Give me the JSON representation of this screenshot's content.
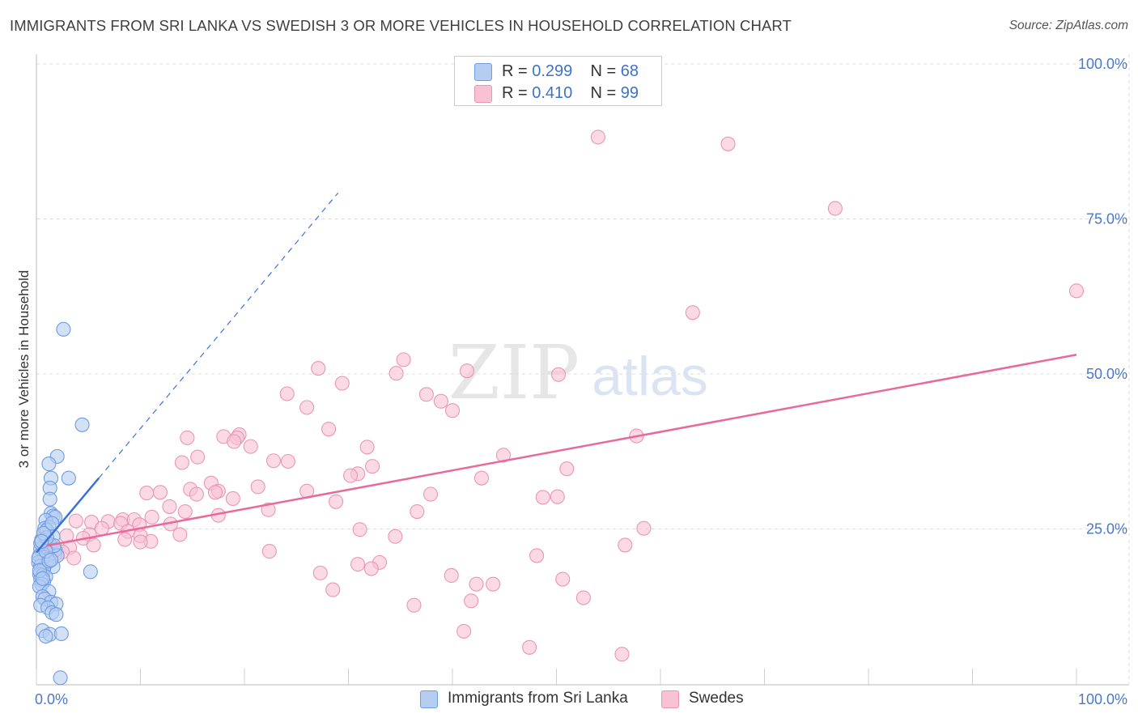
{
  "header": {
    "title": "IMMIGRANTS FROM SRI LANKA VS SWEDISH 3 OR MORE VEHICLES IN HOUSEHOLD CORRELATION CHART",
    "source": "Source: ZipAtlas.com"
  },
  "watermark": {
    "zip": "ZIP",
    "atlas": "atlas"
  },
  "legend": {
    "series1": {
      "r_label": "R =",
      "r_value": "0.299",
      "n_label": "N =",
      "n_value": "68"
    },
    "series2": {
      "r_label": "R =",
      "r_value": "0.410",
      "n_label": "N =",
      "n_value": "99"
    }
  },
  "colors": {
    "blue": "#3a72d8",
    "blue_fill": "#b6cdf2",
    "blue_stroke": "#6f9be0",
    "pink": "#e8699a",
    "pink_fill": "#f8c1d4",
    "pink_stroke": "#e996b6",
    "grid": "#dddddd",
    "axis_text": "#4a78c8"
  },
  "chart_data": {
    "type": "scatter",
    "title": "IMMIGRANTS FROM SRI LANKA VS SWEDISH 3 OR MORE VEHICLES IN HOUSEHOLD CORRELATION CHART",
    "xlabel": "",
    "ylabel": "3 or more Vehicles in Household",
    "xlim": [
      0,
      100
    ],
    "ylim": [
      0,
      100
    ],
    "x_tick_labels": [
      "0.0%",
      "100.0%"
    ],
    "y_ticks": [
      25,
      50,
      75,
      100
    ],
    "y_tick_labels": [
      "25.0%",
      "50.0%",
      "75.0%",
      "100.0%"
    ],
    "grid": true,
    "legend_position": "top-center",
    "series": [
      {
        "name": "Immigrants from Sri Lanka",
        "color": "#3a72d8",
        "r": 0.299,
        "n": 68,
        "trend": {
          "slope": 2.0,
          "intercept": 21.2,
          "solid_x": [
            0,
            6.0
          ],
          "dashed_x": [
            6.0,
            29.0
          ]
        },
        "points": [
          [
            2.6,
            57.2
          ],
          [
            4.4,
            41.8
          ],
          [
            2.0,
            36.7
          ],
          [
            1.2,
            35.5
          ],
          [
            3.1,
            33.2
          ],
          [
            1.4,
            33.2
          ],
          [
            1.3,
            31.6
          ],
          [
            1.3,
            29.8
          ],
          [
            1.4,
            27.5
          ],
          [
            1.6,
            27.1
          ],
          [
            1.8,
            26.9
          ],
          [
            0.9,
            26.4
          ],
          [
            1.2,
            25.3
          ],
          [
            0.8,
            25.1
          ],
          [
            1.0,
            24.8
          ],
          [
            1.6,
            23.8
          ],
          [
            0.5,
            23.3
          ],
          [
            0.9,
            22.9
          ],
          [
            1.3,
            22.5
          ],
          [
            0.7,
            22.1
          ],
          [
            0.4,
            21.8
          ],
          [
            1.8,
            21.6
          ],
          [
            1.1,
            21.3
          ],
          [
            0.6,
            21.0
          ],
          [
            0.3,
            20.7
          ],
          [
            2.0,
            20.7
          ],
          [
            0.8,
            20.4
          ],
          [
            1.1,
            20.1
          ],
          [
            0.5,
            19.9
          ],
          [
            0.2,
            19.6
          ],
          [
            0.9,
            19.3
          ],
          [
            0.4,
            19.0
          ],
          [
            1.6,
            18.9
          ],
          [
            0.7,
            18.6
          ],
          [
            5.2,
            18.1
          ],
          [
            0.3,
            17.7
          ],
          [
            0.6,
            17.5
          ],
          [
            0.9,
            17.3
          ],
          [
            0.4,
            16.9
          ],
          [
            0.7,
            16.5
          ],
          [
            0.5,
            16.1
          ],
          [
            0.3,
            15.7
          ],
          [
            1.2,
            14.9
          ],
          [
            0.6,
            14.1
          ],
          [
            0.8,
            13.7
          ],
          [
            1.4,
            13.2
          ],
          [
            1.9,
            12.9
          ],
          [
            0.4,
            12.7
          ],
          [
            1.1,
            12.3
          ],
          [
            1.5,
            11.5
          ],
          [
            1.9,
            11.2
          ],
          [
            0.6,
            8.6
          ],
          [
            1.3,
            8.0
          ],
          [
            2.4,
            8.1
          ],
          [
            0.9,
            7.7
          ],
          [
            2.3,
            1.0
          ],
          [
            0.2,
            20.3
          ],
          [
            1.7,
            22.3
          ],
          [
            0.4,
            22.7
          ],
          [
            1.0,
            23.6
          ],
          [
            0.7,
            24.3
          ],
          [
            1.5,
            25.9
          ],
          [
            0.3,
            18.3
          ],
          [
            1.2,
            19.8
          ],
          [
            0.9,
            21.4
          ],
          [
            0.5,
            23.0
          ],
          [
            1.4,
            20.0
          ],
          [
            0.6,
            17.0
          ]
        ]
      },
      {
        "name": "Swedes",
        "color": "#e8699a",
        "r": 0.41,
        "n": 99,
        "trend": {
          "slope": 0.311,
          "intercept": 22.0,
          "solid_x": [
            1.0,
            100.0
          ]
        },
        "points": [
          [
            54.0,
            88.2
          ],
          [
            66.5,
            87.1
          ],
          [
            76.8,
            76.7
          ],
          [
            100.0,
            63.4
          ],
          [
            63.1,
            59.9
          ],
          [
            35.3,
            52.3
          ],
          [
            27.1,
            50.9
          ],
          [
            34.6,
            50.1
          ],
          [
            41.4,
            50.5
          ],
          [
            50.2,
            49.9
          ],
          [
            29.4,
            48.5
          ],
          [
            24.1,
            46.8
          ],
          [
            37.5,
            46.7
          ],
          [
            38.9,
            45.6
          ],
          [
            26.0,
            44.6
          ],
          [
            40.0,
            44.1
          ],
          [
            28.1,
            41.1
          ],
          [
            19.5,
            40.2
          ],
          [
            18.0,
            39.9
          ],
          [
            19.3,
            39.7
          ],
          [
            14.5,
            39.7
          ],
          [
            19.0,
            39.1
          ],
          [
            57.7,
            40.0
          ],
          [
            20.6,
            38.3
          ],
          [
            31.8,
            38.2
          ],
          [
            44.9,
            36.9
          ],
          [
            15.5,
            36.6
          ],
          [
            22.8,
            36.0
          ],
          [
            24.2,
            35.9
          ],
          [
            14.0,
            35.7
          ],
          [
            32.3,
            35.1
          ],
          [
            51.0,
            34.7
          ],
          [
            30.9,
            33.9
          ],
          [
            30.2,
            33.6
          ],
          [
            42.8,
            33.2
          ],
          [
            16.8,
            32.4
          ],
          [
            21.3,
            31.8
          ],
          [
            14.8,
            31.4
          ],
          [
            17.5,
            31.1
          ],
          [
            11.9,
            30.9
          ],
          [
            26.0,
            31.1
          ],
          [
            17.2,
            30.9
          ],
          [
            10.6,
            30.8
          ],
          [
            15.4,
            30.6
          ],
          [
            37.9,
            30.6
          ],
          [
            50.1,
            30.2
          ],
          [
            48.7,
            30.1
          ],
          [
            18.9,
            29.9
          ],
          [
            28.8,
            29.4
          ],
          [
            12.8,
            28.6
          ],
          [
            22.3,
            28.1
          ],
          [
            36.6,
            27.8
          ],
          [
            14.3,
            27.8
          ],
          [
            17.5,
            27.2
          ],
          [
            11.1,
            26.9
          ],
          [
            8.3,
            26.5
          ],
          [
            9.4,
            26.5
          ],
          [
            3.8,
            26.3
          ],
          [
            6.9,
            26.2
          ],
          [
            5.3,
            26.1
          ],
          [
            8.1,
            25.9
          ],
          [
            12.9,
            25.8
          ],
          [
            9.9,
            25.7
          ],
          [
            6.3,
            25.1
          ],
          [
            31.1,
            24.9
          ],
          [
            8.8,
            24.6
          ],
          [
            5.1,
            24.1
          ],
          [
            13.8,
            24.1
          ],
          [
            10.0,
            23.9
          ],
          [
            34.5,
            23.8
          ],
          [
            2.9,
            23.9
          ],
          [
            4.5,
            23.5
          ],
          [
            8.5,
            23.3
          ],
          [
            11.0,
            23.0
          ],
          [
            10.0,
            22.9
          ],
          [
            5.5,
            22.4
          ],
          [
            3.2,
            22.0
          ],
          [
            2.5,
            21.3
          ],
          [
            1.8,
            20.9
          ],
          [
            3.6,
            20.3
          ],
          [
            22.4,
            21.4
          ],
          [
            48.1,
            20.7
          ],
          [
            30.9,
            19.3
          ],
          [
            33.0,
            19.6
          ],
          [
            32.2,
            18.6
          ],
          [
            39.9,
            17.5
          ],
          [
            42.3,
            16.1
          ],
          [
            43.9,
            16.1
          ],
          [
            50.6,
            16.9
          ],
          [
            56.6,
            22.4
          ],
          [
            58.4,
            25.1
          ],
          [
            28.5,
            15.2
          ],
          [
            36.3,
            12.7
          ],
          [
            41.8,
            13.4
          ],
          [
            52.6,
            13.9
          ],
          [
            41.1,
            8.5
          ],
          [
            47.4,
            5.9
          ],
          [
            56.3,
            4.8
          ],
          [
            27.3,
            17.9
          ]
        ]
      }
    ]
  },
  "bottom_legend": {
    "items": [
      {
        "label": "Immigrants from Sri Lanka"
      },
      {
        "label": "Swedes"
      }
    ]
  }
}
